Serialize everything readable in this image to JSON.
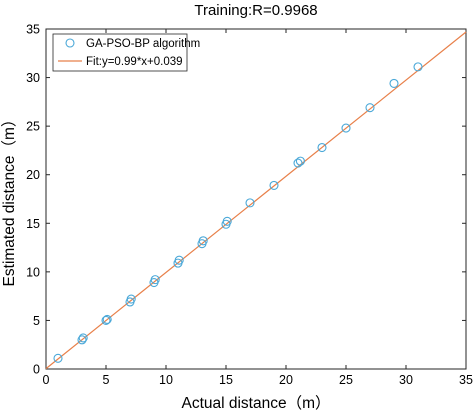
{
  "chart_data": {
    "type": "scatter",
    "title": "Training:R=0.9968",
    "xlabel": "Actual distance（m）",
    "ylabel": "Estimated distance（m）",
    "xlim": [
      0,
      35
    ],
    "ylim": [
      0,
      35
    ],
    "xticks": [
      "0",
      "5",
      "10",
      "15",
      "20",
      "25",
      "30",
      "35"
    ],
    "yticks": [
      "0",
      "5",
      "10",
      "15",
      "20",
      "25",
      "30",
      "35"
    ],
    "grid": false,
    "legend_position": "top-left",
    "series": [
      {
        "name": "GA-PSO-BP algorithm",
        "kind": "scatter",
        "marker": "hollow-circle",
        "color": "#4aa8d8",
        "x": [
          1,
          3,
          3.1,
          5,
          5.1,
          7,
          7.1,
          9,
          9.1,
          11,
          11.1,
          13,
          13.1,
          15,
          15.1,
          17,
          19,
          21,
          21.2,
          23,
          25,
          27,
          29,
          31
        ],
        "y": [
          1.1,
          3.0,
          3.2,
          5.0,
          5.1,
          6.9,
          7.2,
          8.9,
          9.2,
          10.9,
          11.2,
          12.9,
          13.2,
          14.9,
          15.2,
          17.1,
          18.9,
          21.2,
          21.4,
          22.8,
          24.8,
          26.9,
          29.4,
          31.1
        ]
      },
      {
        "name": "Fit:y=0.99*x+0.039",
        "kind": "line",
        "color": "#e8804a",
        "slope": 0.99,
        "intercept": 0.039,
        "x_range": [
          0,
          35
        ]
      }
    ]
  }
}
